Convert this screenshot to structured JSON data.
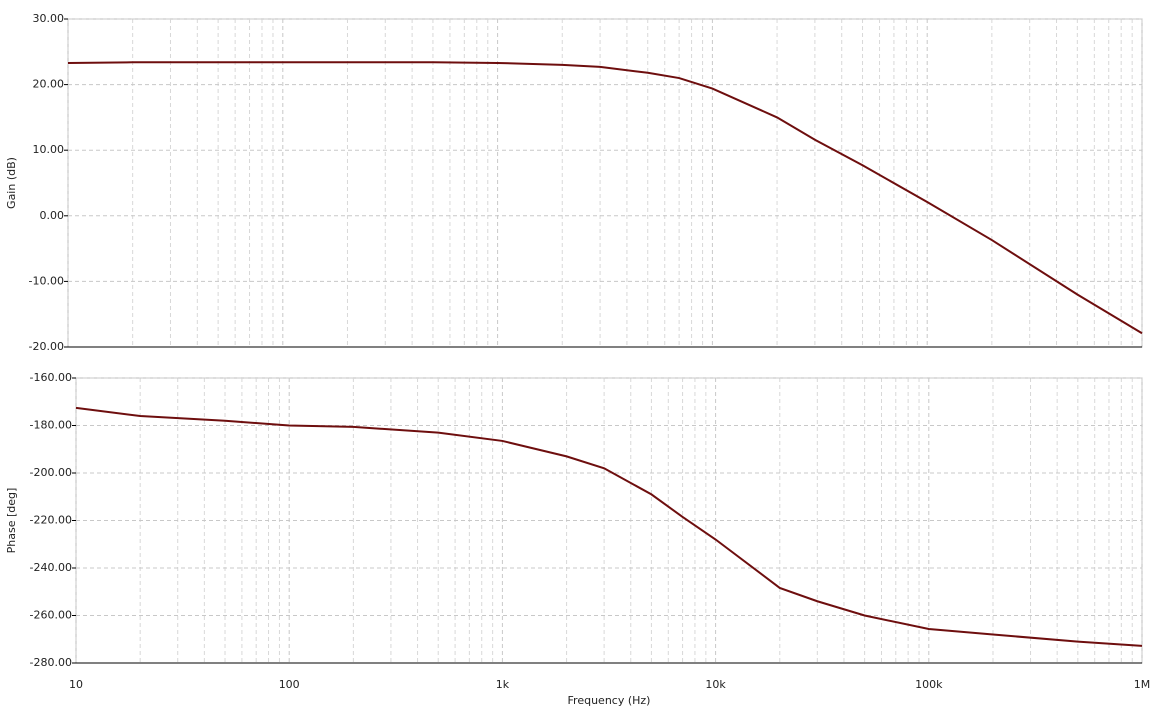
{
  "chart_data": [
    {
      "type": "line",
      "ylabel": "Gain (dB)",
      "log_x": true,
      "grid": true,
      "minor_grid": true,
      "xlim": [
        10,
        1000000
      ],
      "xticks": [
        10,
        100,
        1000,
        10000,
        100000,
        1000000
      ],
      "ylim": [
        -20,
        30
      ],
      "yticks": [
        {
          "value": -20,
          "label": "-20.00"
        },
        {
          "value": -10,
          "label": "-10.00"
        },
        {
          "value": 0,
          "label": "0.00"
        },
        {
          "value": 10,
          "label": "10.00"
        },
        {
          "value": 20,
          "label": "20.00"
        },
        {
          "value": 30,
          "label": "30.00"
        }
      ],
      "x": [
        10,
        20,
        50,
        100,
        200,
        500,
        1000,
        2000,
        3000,
        5000,
        7000,
        10000,
        20000,
        30000,
        50000,
        100000,
        200000,
        500000,
        1000000
      ],
      "series": [
        {
          "color": "#6e0e0e",
          "values": [
            23.3,
            23.4,
            23.4,
            23.4,
            23.4,
            23.4,
            23.3,
            23.0,
            22.7,
            21.8,
            21.0,
            19.4,
            15.0,
            11.6,
            7.7,
            2.1,
            -3.7,
            -12.0,
            -17.9
          ]
        }
      ]
    },
    {
      "type": "line",
      "ylabel": "Phase [deg]",
      "xlabel": "Frequency (Hz)",
      "log_x": true,
      "grid": true,
      "minor_grid": true,
      "xlim": [
        10,
        1000000
      ],
      "xticks": [
        10,
        100,
        {
          "value": 1000,
          "label": "1k"
        },
        {
          "value": 10000,
          "label": "10k"
        },
        {
          "value": 100000,
          "label": "100k"
        },
        {
          "value": 1000000,
          "label": "1M"
        }
      ],
      "ylim": [
        -280,
        -160
      ],
      "yticks": [
        {
          "value": -280,
          "label": "-280.00"
        },
        {
          "value": -260,
          "label": "-260.00"
        },
        {
          "value": -240,
          "label": "-240.00"
        },
        {
          "value": -220,
          "label": "-220.00"
        },
        {
          "value": -200,
          "label": "-200.00"
        },
        {
          "value": -180,
          "label": "-180.00"
        },
        {
          "value": -160,
          "label": "-160.00"
        }
      ],
      "x": [
        10,
        20,
        50,
        100,
        200,
        500,
        1000,
        2000,
        3000,
        5000,
        7000,
        10000,
        20000,
        30000,
        50000,
        100000,
        200000,
        500000,
        1000000
      ],
      "series": [
        {
          "color": "#6e0e0e",
          "values": [
            -172.6,
            -176,
            -178,
            -180,
            -180.6,
            -183,
            -186.5,
            -193,
            -198,
            -209,
            -218.5,
            -228,
            -248.4,
            -254,
            -260,
            -265.7,
            -268,
            -271,
            -272.8
          ]
        }
      ]
    }
  ]
}
